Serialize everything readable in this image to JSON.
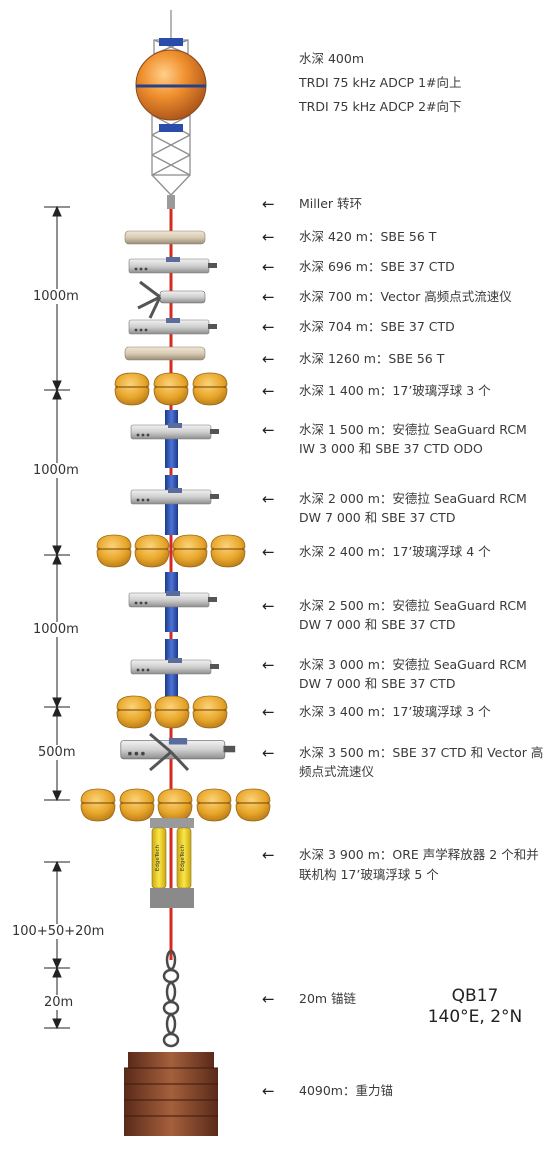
{
  "labels": {
    "top1": "水深 400m",
    "top2": "TRDI 75 kHz ADCP 1#向上",
    "top3": "TRDI 75 kHz ADCP 2#向下",
    "l1": "Miller 转环",
    "l2": "水深 420 m：SBE 56 T",
    "l3": "水深 696 m：SBE 37 CTD",
    "l4": "水深 700 m：Vector 高频点式流速仪",
    "l5": "水深 704 m：SBE 37 CTD",
    "l6": "水深 1260 m：SBE 56 T",
    "l7": "水深 1 400 m：17’玻璃浮球 3 个",
    "l8a": "水深 1 500 m：安德拉 SeaGuard RCM",
    "l8b": "IW 3 000 和 SBE 37 CTD ODO",
    "l9a": "水深 2 000 m：安德拉 SeaGuard RCM",
    "l9b": "DW 7 000 和 SBE 37 CTD",
    "l10": "水深 2 400 m：17’玻璃浮球 4 个",
    "l11a": "水深 2 500 m：安德拉 SeaGuard RCM",
    "l11b": "DW 7 000 和 SBE 37 CTD",
    "l12a": "水深 3 000 m：安德拉 SeaGuard RCM",
    "l12b": "DW 7 000 和 SBE 37 CTD",
    "l13": "水深 3 400 m：17’玻璃浮球 3 个",
    "l14a": "水深 3 500 m：SBE 37 CTD 和 Vector 高",
    "l14b": "频点式流速仪",
    "l15a": "水深 3 900 m：ORE 声学释放器 2 个和并",
    "l15b": "联机构 17’玻璃浮球 5 个",
    "l16": "20m 锚链",
    "l17": "4090m：重力锚"
  },
  "dims": {
    "d1": "1000m",
    "d2": "1000m",
    "d3": "1000m",
    "d4": "500m",
    "d5": "100+50+20m",
    "d6": "20m"
  },
  "site": {
    "name": "QB17",
    "coords": "140°E, 2°N"
  },
  "brand": "EdgeTech",
  "arrow_glyph": "←",
  "colors": {
    "rope": "#d42a1f",
    "float": "#e8a62a",
    "buoy": "#e8832a",
    "frame": "#a8a8a8",
    "current_meter": "#2a4cab",
    "release": "#f2d21f",
    "anchor": "#8a4a30"
  }
}
